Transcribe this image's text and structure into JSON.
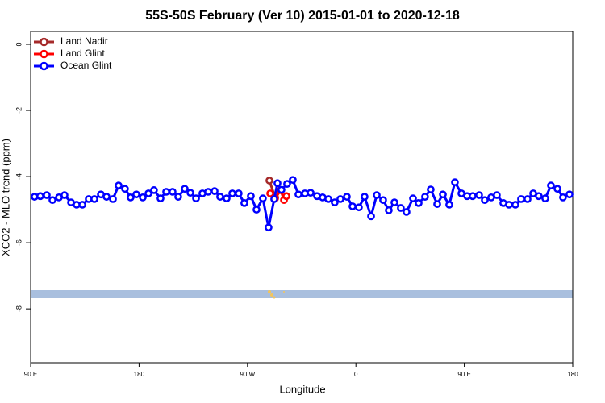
{
  "chart_data": {
    "type": "line",
    "title": "55S-50S February (Ver 10)   2015-01-01 to 2020-12-18",
    "xlabel": "Longitude",
    "ylabel": "XCO2 - MLO trend (ppm)",
    "xlim": [
      90,
      540
    ],
    "ylim": [
      -9.63,
      0.39
    ],
    "xticks": [
      {
        "value": 90,
        "label": "90 E"
      },
      {
        "value": 180,
        "label": "180"
      },
      {
        "value": 270,
        "label": "90 W"
      },
      {
        "value": 360,
        "label": "0"
      },
      {
        "value": 450,
        "label": "90 E"
      },
      {
        "value": 540,
        "label": "180"
      }
    ],
    "yticks": [
      0,
      -2,
      -4,
      -6,
      -8
    ],
    "legend": "top-left",
    "series": [
      {
        "name": "Land Nadir",
        "color": "#a52a2a",
        "x": [
          288.2,
          292.9
        ],
        "values": [
          -4.12,
          -4.63
        ]
      },
      {
        "name": "Land Glint",
        "color": "#ff0000",
        "x": [
          288.9,
          292.9,
          297.6,
          300.3,
          302.3
        ],
        "values": [
          -4.51,
          -4.66,
          -4.41,
          -4.71,
          -4.59
        ]
      },
      {
        "name": "Ocean Glint",
        "color": "#0000ff",
        "x": [
          93.3,
          98.0,
          103.4,
          108.1,
          113.5,
          118.1,
          123.5,
          128.2,
          132.9,
          138.2,
          142.9,
          148.3,
          153.0,
          158.3,
          163.0,
          168.3,
          173.0,
          177.7,
          183.1,
          187.8,
          192.4,
          197.8,
          202.5,
          207.8,
          212.5,
          217.9,
          222.6,
          227.3,
          232.6,
          237.3,
          242.7,
          247.3,
          252.7,
          257.4,
          262.7,
          267.4,
          272.8,
          277.5,
          282.8,
          287.5,
          292.2,
          294.9,
          298.2,
          302.9,
          307.6,
          312.3,
          317.7,
          322.4,
          327.7,
          332.4,
          337.1,
          342.4,
          347.1,
          352.5,
          357.2,
          362.5,
          367.2,
          372.6,
          377.3,
          382.6,
          387.3,
          392.0,
          397.3,
          402.0,
          407.4,
          412.1,
          417.4,
          422.1,
          427.5,
          432.2,
          437.5,
          442.2,
          447.6,
          452.3,
          456.9,
          462.3,
          467.0,
          472.3,
          477.0,
          482.4,
          487.1,
          492.4,
          497.1,
          502.5,
          507.2,
          511.8,
          517.2,
          521.9,
          527.3,
          531.9,
          537.3
        ],
        "values": [
          -4.61,
          -4.59,
          -4.56,
          -4.71,
          -4.63,
          -4.56,
          -4.78,
          -4.85,
          -4.85,
          -4.68,
          -4.68,
          -4.54,
          -4.61,
          -4.68,
          -4.27,
          -4.37,
          -4.63,
          -4.54,
          -4.63,
          -4.51,
          -4.41,
          -4.66,
          -4.46,
          -4.46,
          -4.61,
          -4.37,
          -4.49,
          -4.66,
          -4.51,
          -4.46,
          -4.44,
          -4.61,
          -4.66,
          -4.51,
          -4.51,
          -4.8,
          -4.59,
          -5.0,
          -4.66,
          -5.54,
          -4.68,
          -4.2,
          -4.4,
          -4.22,
          -4.1,
          -4.54,
          -4.51,
          -4.49,
          -4.59,
          -4.63,
          -4.68,
          -4.78,
          -4.68,
          -4.61,
          -4.9,
          -4.93,
          -4.61,
          -5.2,
          -4.56,
          -4.71,
          -5.02,
          -4.78,
          -4.95,
          -5.07,
          -4.66,
          -4.8,
          -4.61,
          -4.39,
          -4.83,
          -4.54,
          -4.85,
          -4.17,
          -4.51,
          -4.59,
          -4.59,
          -4.56,
          -4.71,
          -4.63,
          -4.56,
          -4.8,
          -4.85,
          -4.85,
          -4.68,
          -4.68,
          -4.51,
          -4.59,
          -4.66,
          -4.27,
          -4.37,
          -4.63,
          -4.54
        ]
      }
    ]
  }
}
